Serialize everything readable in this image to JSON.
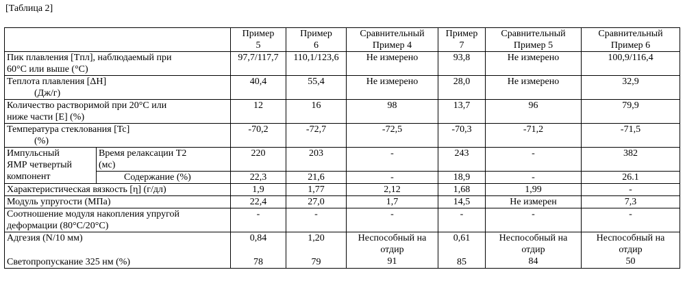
{
  "caption": "[Таблица 2]",
  "headers": [
    {
      "l1": "Пример",
      "l2": "5"
    },
    {
      "l1": "Пример",
      "l2": "6"
    },
    {
      "l1": "Сравнительный",
      "l2": "Пример 4"
    },
    {
      "l1": "Пример",
      "l2": "7"
    },
    {
      "l1": "Сравнительный",
      "l2": "Пример 5"
    },
    {
      "l1": "Сравнительный",
      "l2": "Пример 6"
    }
  ],
  "rows": {
    "melting_peak": {
      "label_l1": "Пик плавления [Tпл], наблюдаемый при",
      "label_l2": "60°C или выше  (°C)",
      "values": [
        "97,7/117,7",
        "110,1/123,6",
        "Не измерено",
        "93,8",
        "Не измерено",
        "100,9/116,4"
      ]
    },
    "heat_of_fusion": {
      "label_l1": "Теплота плавления [ΔH]",
      "label_l2": "(Дж/г)",
      "values": [
        "40,4",
        "55,4",
        "Не измерено",
        "28,0",
        "Не измерено",
        "32,9"
      ]
    },
    "soluble": {
      "label_l1": "Количество растворимой при 20°C или",
      "label_l2": "ниже части [E] (%)",
      "values": [
        "12",
        "16",
        "98",
        "13,7",
        "96",
        "79,9"
      ]
    },
    "glass_transition": {
      "label_l1": "Температура стеклования [Tc]",
      "label_l2": "(%)",
      "values": [
        "-70,2",
        "-72,7",
        "-72,5",
        "-70,3",
        "-71,2",
        "-71,5"
      ]
    },
    "nmr": {
      "group_l1": "Импульсный",
      "group_l2": "ЯМР четвертый",
      "group_l3": "компонент",
      "relax_label_l1": "Время релаксации T2",
      "relax_label_l2": "(мс)",
      "relax_values": [
        "220",
        "203",
        "-",
        "243",
        "-",
        "382"
      ],
      "content_label": "Содержание (%)",
      "content_values": [
        "22,3",
        "21,6",
        "-",
        "18,9",
        "-",
        "26.1"
      ]
    },
    "viscosity": {
      "label": "Характеристическая вязкость [η] (г/дл)",
      "values": [
        "1,9",
        "1,77",
        "2,12",
        "1,68",
        "1,99",
        "-"
      ]
    },
    "modulus": {
      "label": "Модуль упругости (МПа)",
      "values": [
        "22,4",
        "27,0",
        "1,7",
        "14,5",
        "Не измерен",
        "7,3"
      ]
    },
    "storage_ratio": {
      "label_l1": "Соотношение модуля накопления упругой",
      "label_l2": "деформации (80°C/20°C)",
      "values": [
        "-",
        "-",
        "-",
        "-",
        "-",
        "-"
      ]
    },
    "adhesion": {
      "label": "Адгезия (N/10 мм)",
      "values": [
        "0,84",
        "1,20",
        "Неспособный на",
        "0,61",
        "Неспособный на",
        "Неспособный на"
      ],
      "values_cont": [
        "",
        "",
        "отдир",
        "",
        "отдир",
        "отдир"
      ]
    },
    "transmittance": {
      "label": "Светопропускание 325 нм (%)",
      "values": [
        "78",
        "79",
        "91",
        "85",
        "84",
        "50"
      ]
    }
  }
}
